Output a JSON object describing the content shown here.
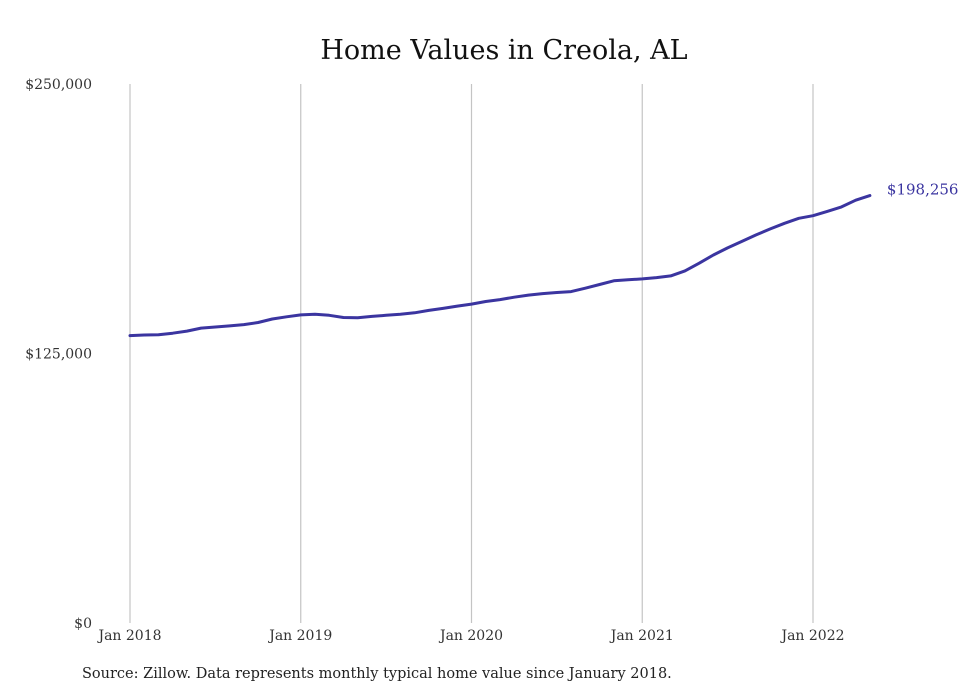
{
  "chart_data": {
    "type": "line",
    "title": "Home Values in Creola, AL",
    "xlabel": "",
    "ylabel": "",
    "ylim": [
      0,
      250000
    ],
    "y_ticks": [
      {
        "value": 0,
        "label": "$0"
      },
      {
        "value": 125000,
        "label": "$125,000"
      },
      {
        "value": 250000,
        "label": "$250,000"
      }
    ],
    "x_ticks": [
      {
        "value": "2018-01",
        "label": "Jan 2018"
      },
      {
        "value": "2019-01",
        "label": "Jan 2019"
      },
      {
        "value": "2020-01",
        "label": "Jan 2020"
      },
      {
        "value": "2021-01",
        "label": "Jan 2021"
      },
      {
        "value": "2022-01",
        "label": "Jan 2022"
      }
    ],
    "grid": "vertical lines at x ticks",
    "legend": "none",
    "series": [
      {
        "color": "#3b35a0",
        "x": [
          "2018-01",
          "2018-02",
          "2018-03",
          "2018-04",
          "2018-05",
          "2018-06",
          "2018-07",
          "2018-08",
          "2018-09",
          "2018-10",
          "2018-11",
          "2018-12",
          "2019-01",
          "2019-02",
          "2019-03",
          "2019-04",
          "2019-05",
          "2019-06",
          "2019-07",
          "2019-08",
          "2019-09",
          "2019-10",
          "2019-11",
          "2019-12",
          "2020-01",
          "2020-02",
          "2020-03",
          "2020-04",
          "2020-05",
          "2020-06",
          "2020-07",
          "2020-08",
          "2020-09",
          "2020-10",
          "2020-11",
          "2020-12",
          "2021-01",
          "2021-02",
          "2021-03",
          "2021-04",
          "2021-05",
          "2021-06",
          "2021-07",
          "2021-08",
          "2021-09",
          "2021-10",
          "2021-11",
          "2021-12",
          "2022-01",
          "2022-02",
          "2022-03",
          "2022-04",
          "2022-05"
        ],
        "values": [
          133300,
          133600,
          133700,
          134400,
          135400,
          136800,
          137300,
          137800,
          138400,
          139400,
          141000,
          142000,
          142900,
          143200,
          142700,
          141700,
          141600,
          142200,
          142700,
          143200,
          143900,
          145000,
          145900,
          147000,
          147900,
          149100,
          150000,
          151100,
          152100,
          152800,
          153300,
          153700,
          155300,
          157000,
          158700,
          159200,
          159600,
          160200,
          161000,
          163300,
          166900,
          170700,
          174000,
          177000,
          180000,
          182800,
          185400,
          187700,
          188900,
          190900,
          193000,
          196100,
          198256
        ]
      }
    ],
    "end_label": "$198,256"
  },
  "source_note": "Source: Zillow. Data represents monthly typical home value since January 2018."
}
